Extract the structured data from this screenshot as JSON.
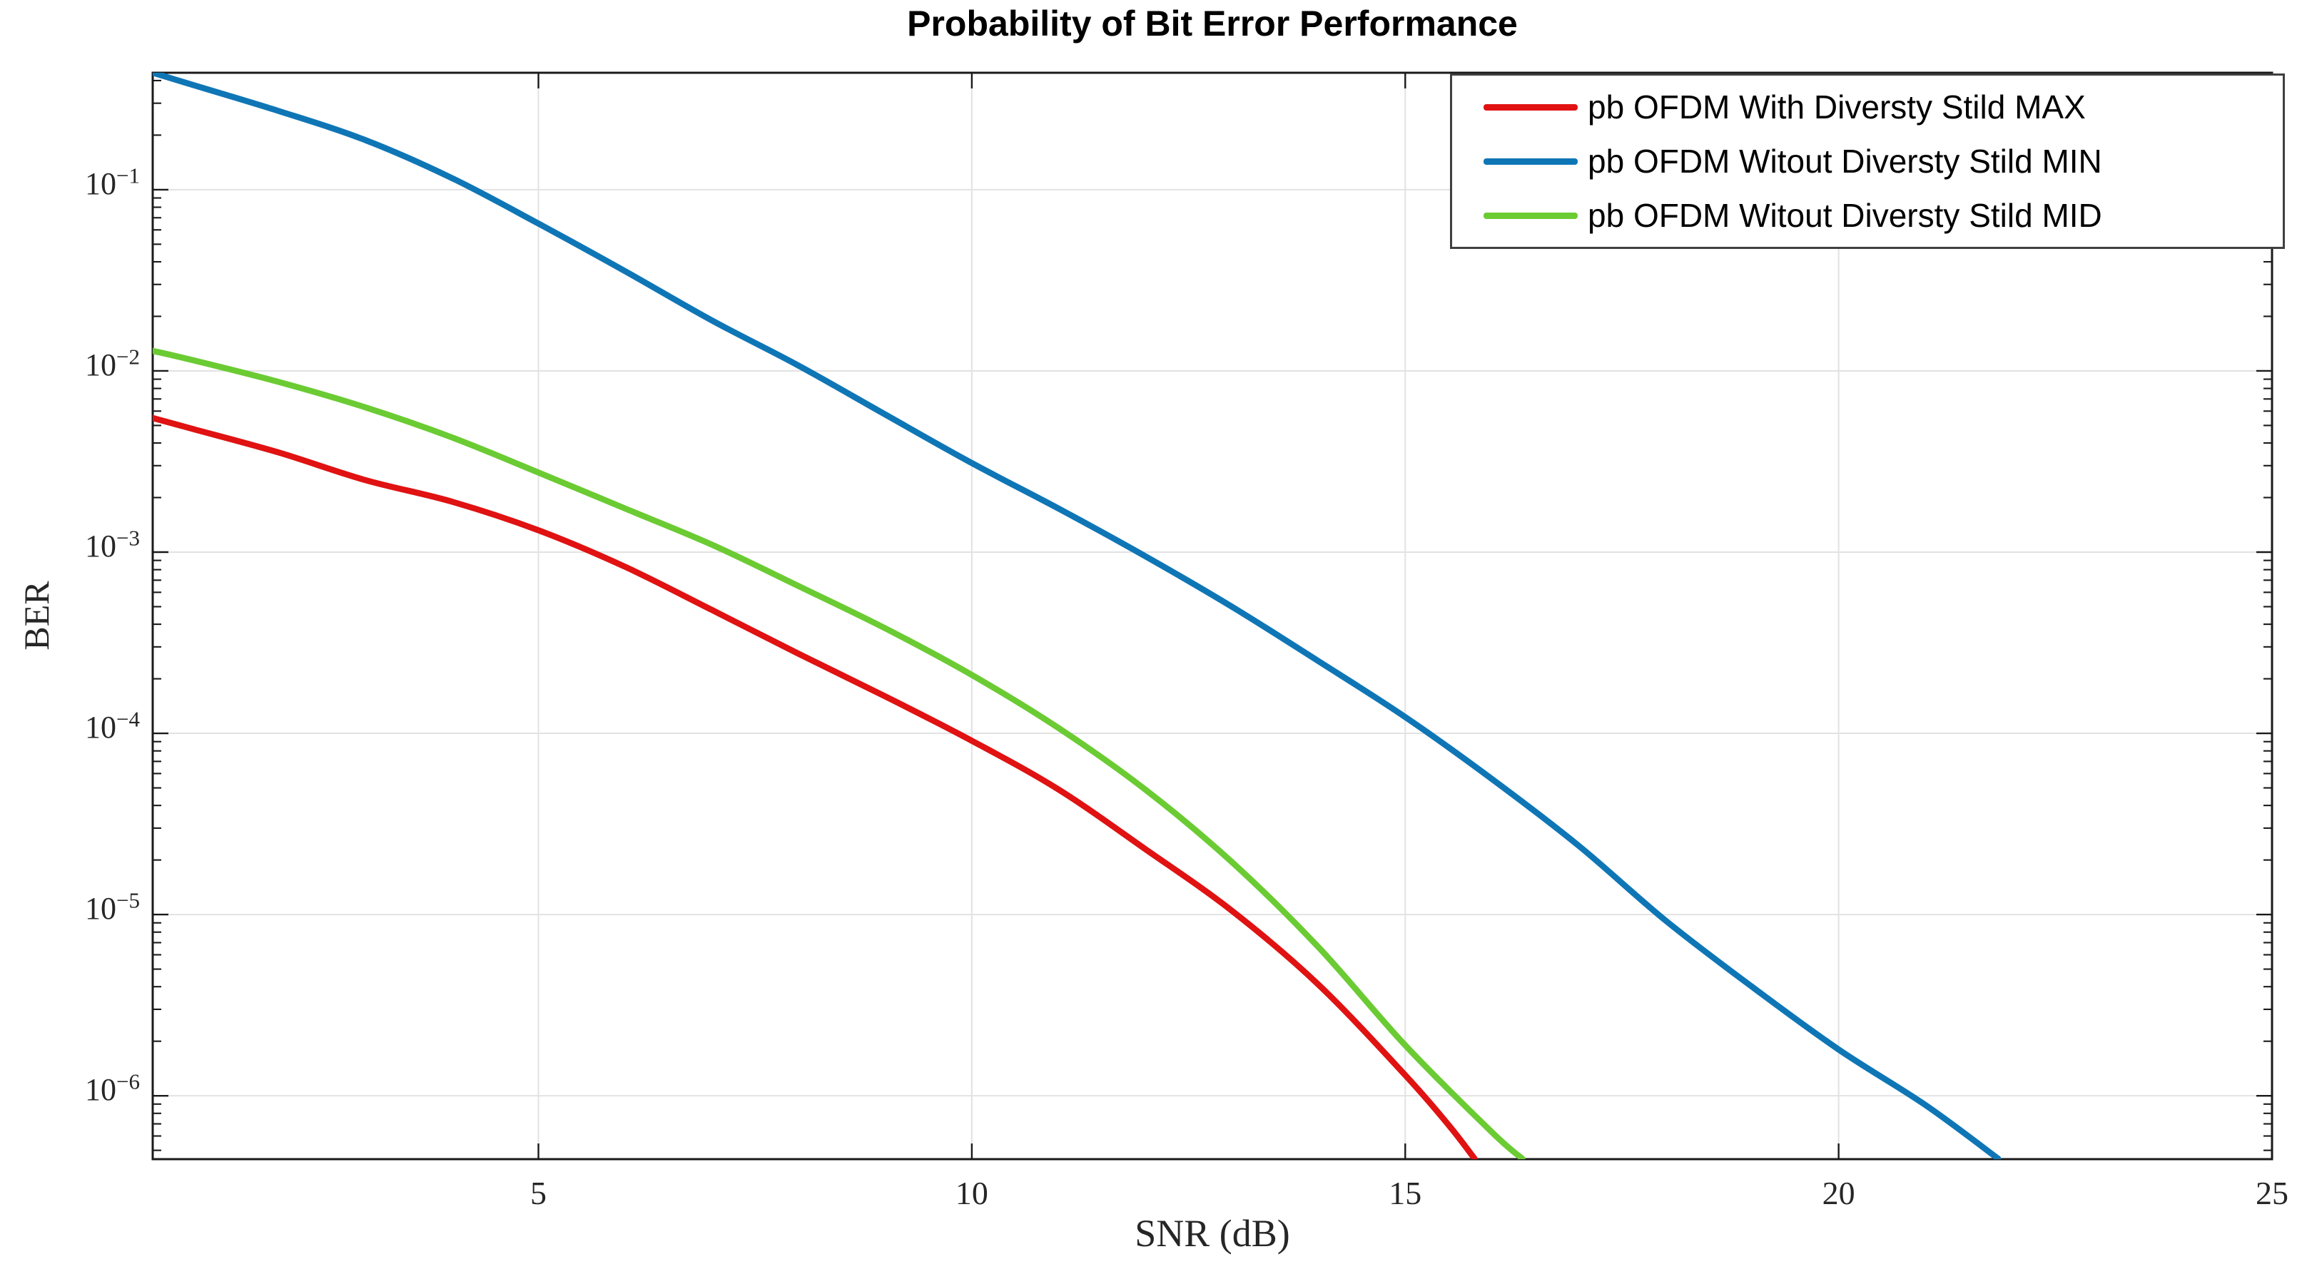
{
  "chart_data": {
    "type": "line",
    "title": "Probability of Bit Error Performance",
    "xlabel": "SNR (dB)",
    "ylabel": "BER",
    "x_scale": "linear",
    "y_scale": "log",
    "xlim": [
      0.55,
      25
    ],
    "ylim": [
      4.47e-07,
      0.4417
    ],
    "grid": true,
    "box": true,
    "legend_position": "top-right",
    "x_ticks": [
      5,
      10,
      15,
      20,
      25
    ],
    "x_tick_labels": [
      "5",
      "10",
      "15",
      "20",
      "25"
    ],
    "y_tick_exponents": [
      -1,
      -2,
      -3,
      -4,
      -5,
      -6
    ],
    "y_tick_base": "10",
    "axis_color": "#1a1a1a",
    "grid_color": "#e2e2e2",
    "series": [
      {
        "name": "pb OFDM With Diversty Stild MAX",
        "color": "#e01212",
        "x": [
          0.55,
          1,
          2,
          3,
          4,
          5,
          6,
          7,
          8,
          9,
          10,
          11,
          12,
          13,
          14,
          15,
          15.5,
          15.8
        ],
        "y": [
          0.0055,
          0.0048,
          0.00355,
          0.0025,
          0.0019,
          0.00132,
          0.00083,
          0.00048,
          0.000275,
          0.00016,
          9.1e-05,
          4.9e-05,
          2.3e-05,
          1.05e-05,
          4.1e-06,
          1.3e-06,
          6.9e-07,
          4.5e-07
        ]
      },
      {
        "name": "pb OFDM Witout Diversty Stild MIN",
        "color": "#0f76b6",
        "x": [
          0.55,
          1,
          2,
          3,
          4,
          5,
          6,
          7,
          8,
          9,
          10,
          11,
          12,
          13,
          14,
          15,
          16,
          17,
          18,
          19,
          20,
          21,
          21.84
        ],
        "y": [
          0.442,
          0.38,
          0.272,
          0.188,
          0.116,
          0.065,
          0.0355,
          0.019,
          0.0107,
          0.00575,
          0.0031,
          0.00174,
          0.00095,
          0.0005,
          0.00025,
          0.000123,
          5.6e-05,
          2.4e-05,
          9.3e-06,
          4e-06,
          1.8e-06,
          8.9e-07,
          4.5e-07
        ]
      },
      {
        "name": "pb OFDM Witout Diversty Stild MID",
        "color": "#6bcb33",
        "x": [
          0.55,
          1,
          2,
          3,
          4,
          5,
          6,
          7,
          8,
          9,
          10,
          11,
          12,
          13,
          14,
          15,
          16,
          16.35
        ],
        "y": [
          0.0129,
          0.0115,
          0.0087,
          0.0063,
          0.0043,
          0.00275,
          0.00174,
          0.0011,
          0.00065,
          0.00038,
          0.00021,
          0.000107,
          4.9e-05,
          1.95e-05,
          6.6e-06,
          1.9e-06,
          6.3e-07,
          4.5e-07
        ]
      }
    ],
    "legend_order": [
      0,
      1,
      2
    ]
  }
}
